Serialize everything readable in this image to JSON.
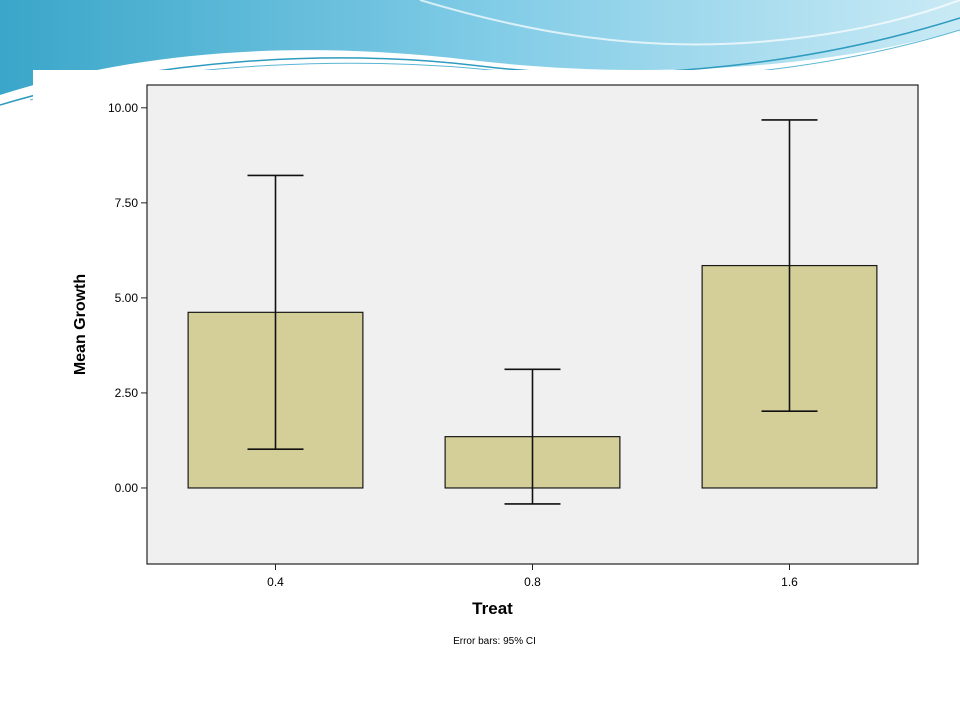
{
  "chart_data": {
    "type": "bar",
    "categories": [
      "0.4",
      "0.8",
      "1.6"
    ],
    "values": [
      4.62,
      1.35,
      5.85
    ],
    "error_bars": [
      {
        "low": 1.02,
        "high": 8.22
      },
      {
        "low": -0.42,
        "high": 3.12
      },
      {
        "low": 2.02,
        "high": 9.68
      }
    ],
    "xlabel": "Treat",
    "ylabel": "Mean Growth",
    "ylim": [
      -2,
      10.6
    ],
    "yticks": [
      0.0,
      2.5,
      5.0,
      7.5,
      10.0
    ],
    "ytick_labels": [
      "0.00",
      "2.50",
      "5.00",
      "7.50",
      "10.00"
    ],
    "footnote": "Error bars: 95% CI",
    "grid": false,
    "colors": {
      "bar_fill": "#d4cf98",
      "bar_stroke": "#1a1a1a",
      "plot_background": "#f0f0f0"
    }
  }
}
